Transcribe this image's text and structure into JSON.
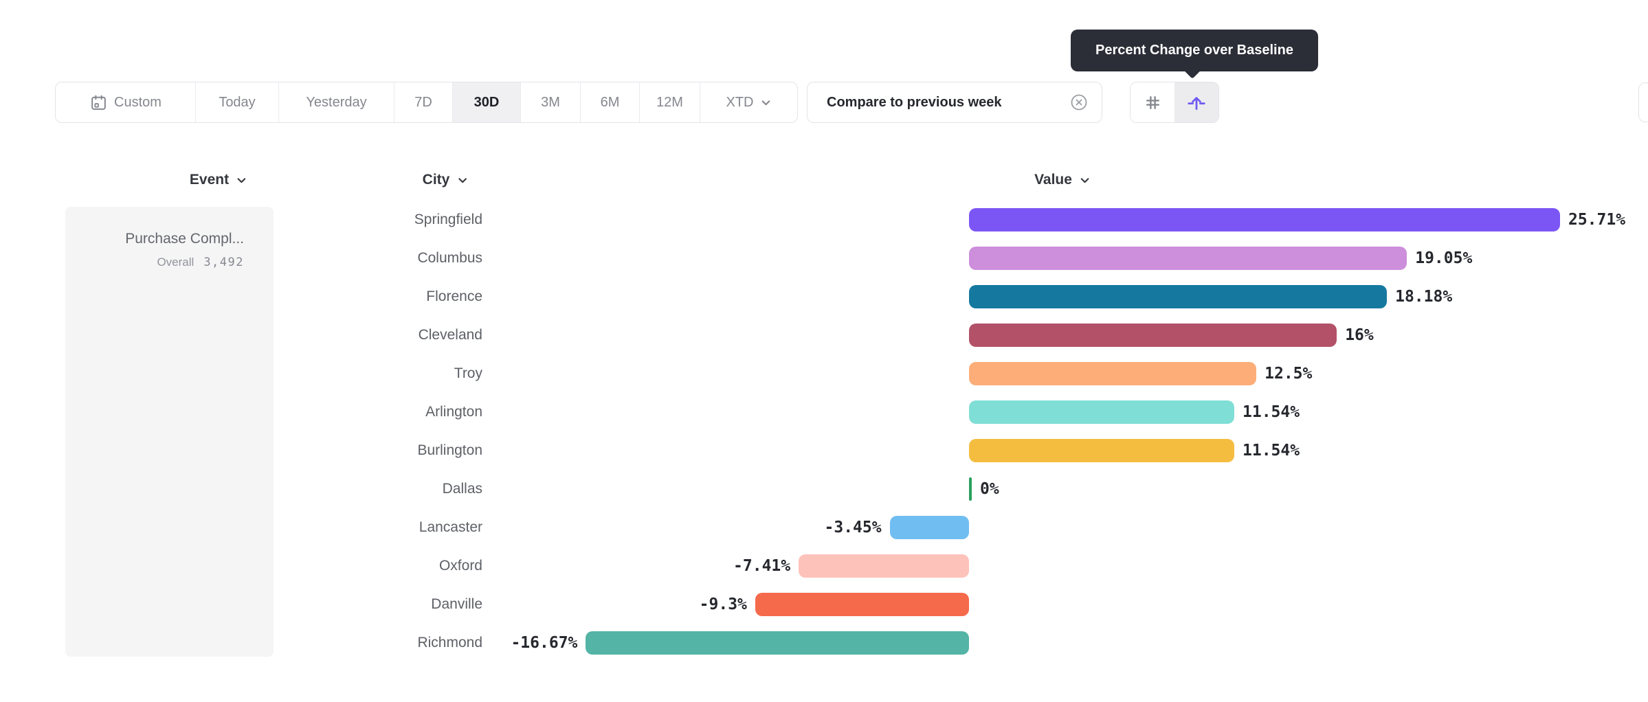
{
  "tooltip": {
    "text": "Percent Change over Baseline"
  },
  "toolbar": {
    "date_ranges": [
      {
        "label": "Custom",
        "calendar_icon": true,
        "selected": false
      },
      {
        "label": "Today",
        "selected": false
      },
      {
        "label": "Yesterday",
        "selected": false
      },
      {
        "label": "7D",
        "selected": false
      },
      {
        "label": "30D",
        "selected": true
      },
      {
        "label": "3M",
        "selected": false
      },
      {
        "label": "6M",
        "selected": false
      },
      {
        "label": "12M",
        "selected": false
      },
      {
        "label": "XTD",
        "chevron": true,
        "selected": false
      }
    ],
    "compare_chip": {
      "label": "Compare to previous week",
      "close_icon": "circle-x-icon"
    },
    "view_toggle": [
      {
        "name": "number-view",
        "icon": "hash-icon",
        "selected": false,
        "color": "#85878d"
      },
      {
        "name": "uplift-view",
        "icon": "uplift-arrow-icon",
        "selected": true,
        "color": "#6e5af0"
      }
    ]
  },
  "columns": [
    {
      "label": "Event"
    },
    {
      "label": "City"
    },
    {
      "label": "Value"
    }
  ],
  "event_panel": {
    "event_name": "Purchase Compl...",
    "overall_label": "Overall",
    "overall_value": "3,492"
  },
  "chart_data": {
    "type": "bar",
    "orientation": "horizontal",
    "title": "Percent Change over Baseline",
    "unit": "%",
    "baseline": 0,
    "xlim": [
      -16.67,
      25.71
    ],
    "categories": [
      "Springfield",
      "Columbus",
      "Florence",
      "Cleveland",
      "Troy",
      "Arlington",
      "Burlington",
      "Dallas",
      "Lancaster",
      "Oxford",
      "Danville",
      "Richmond"
    ],
    "values": [
      25.71,
      19.05,
      18.18,
      16,
      12.5,
      11.54,
      11.54,
      0,
      -3.45,
      -7.41,
      -9.3,
      -16.67
    ],
    "labels": [
      "25.71%",
      "19.05%",
      "18.18%",
      "16%",
      "12.5%",
      "11.54%",
      "11.54%",
      "0%",
      "-3.45%",
      "-7.41%",
      "-9.3%",
      "-16.67%"
    ],
    "colors": [
      "#7C55F5",
      "#CD8EDC",
      "#15799F",
      "#B25168",
      "#FCAD78",
      "#7FDED5",
      "#F4BD40",
      "#2BA05F",
      "#70BDF1",
      "#FDC2BA",
      "#F56A4B",
      "#54B4A6"
    ]
  }
}
